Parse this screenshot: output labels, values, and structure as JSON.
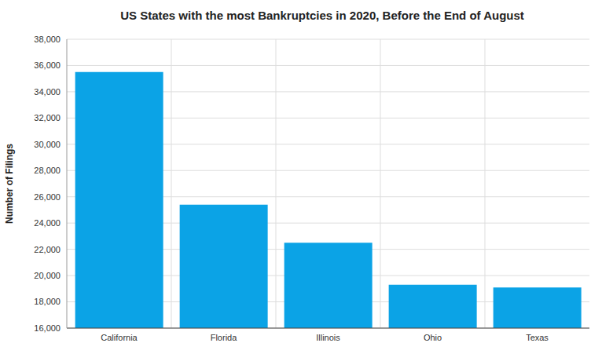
{
  "chart_data": {
    "type": "bar",
    "title": "US States with the most Bankruptcies in 2020, Before the End of August",
    "y_label": "Number of Filings",
    "categories": [
      "California",
      "Florida",
      "Illinois",
      "Ohio",
      "Texas"
    ],
    "values": [
      35500,
      25400,
      22500,
      19300,
      19100
    ],
    "color": "#0ba3e6",
    "ylim": [
      16000,
      38000
    ],
    "yticks": [
      {
        "value": 16000,
        "label": "16,000"
      },
      {
        "value": 18000,
        "label": "18,000"
      },
      {
        "value": 20000,
        "label": "20,000"
      },
      {
        "value": 22000,
        "label": "22,000"
      },
      {
        "value": 24000,
        "label": "24,000"
      },
      {
        "value": 26000,
        "label": "26,000"
      },
      {
        "value": 28000,
        "label": "28,000"
      },
      {
        "value": 30000,
        "label": "30,000"
      },
      {
        "value": 32000,
        "label": "32,000"
      },
      {
        "value": 34000,
        "label": "34,000"
      },
      {
        "value": 36000,
        "label": "36,000"
      },
      {
        "value": 38000,
        "label": "38,000"
      }
    ],
    "grid": true
  }
}
